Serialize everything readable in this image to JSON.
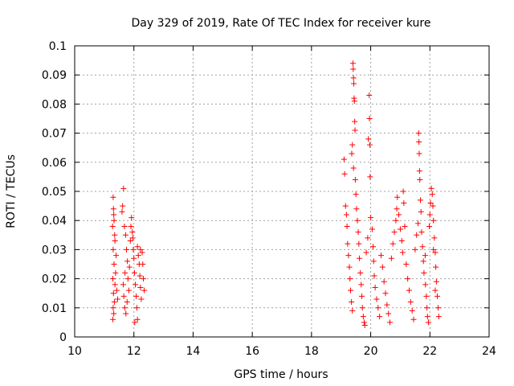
{
  "chart_data": {
    "type": "scatter",
    "title": "Day 329 of 2019, Rate Of TEC Index for receiver kure",
    "xlabel": "GPS time / hours",
    "ylabel": "ROTI / TECUs",
    "xlim": [
      10,
      24
    ],
    "ylim": [
      0,
      0.1
    ],
    "x_ticks": [
      "10",
      "12",
      "14",
      "16",
      "18",
      "20",
      "22",
      "24"
    ],
    "y_ticks": [
      "0",
      "0.01",
      "0.02",
      "0.03",
      "0.04",
      "0.05",
      "0.06",
      "0.07",
      "0.08",
      "0.09",
      "0.1"
    ],
    "grid": true,
    "legend": "none",
    "marker": "plus",
    "marker_color": "#ff0000",
    "series": [
      {
        "points": [
          [
            11.3,
            0.048
          ],
          [
            11.32,
            0.042
          ],
          [
            11.28,
            0.038
          ],
          [
            11.35,
            0.035
          ],
          [
            11.3,
            0.03
          ],
          [
            11.33,
            0.025
          ],
          [
            11.29,
            0.02
          ],
          [
            11.36,
            0.018
          ],
          [
            11.31,
            0.015
          ],
          [
            11.34,
            0.012
          ],
          [
            11.3,
            0.01
          ],
          [
            11.32,
            0.008
          ],
          [
            11.29,
            0.006
          ],
          [
            11.38,
            0.022
          ],
          [
            11.4,
            0.028
          ],
          [
            11.36,
            0.033
          ],
          [
            11.42,
            0.016
          ],
          [
            11.45,
            0.013
          ],
          [
            11.33,
            0.04
          ],
          [
            11.31,
            0.044
          ],
          [
            11.65,
            0.051
          ],
          [
            11.62,
            0.045
          ],
          [
            11.6,
            0.043
          ],
          [
            11.68,
            0.038
          ],
          [
            11.72,
            0.035
          ],
          [
            11.75,
            0.03
          ],
          [
            11.78,
            0.026
          ],
          [
            11.7,
            0.022
          ],
          [
            11.64,
            0.018
          ],
          [
            11.66,
            0.014
          ],
          [
            11.69,
            0.01
          ],
          [
            11.73,
            0.008
          ],
          [
            11.8,
            0.02
          ],
          [
            11.85,
            0.024
          ],
          [
            11.88,
            0.033
          ],
          [
            11.9,
            0.038
          ],
          [
            11.92,
            0.041
          ],
          [
            11.95,
            0.036
          ],
          [
            11.98,
            0.03
          ],
          [
            12.0,
            0.027
          ],
          [
            12.02,
            0.022
          ],
          [
            12.05,
            0.018
          ],
          [
            12.08,
            0.014
          ],
          [
            12.1,
            0.01
          ],
          [
            12.12,
            0.006
          ],
          [
            12.03,
            0.005
          ],
          [
            12.15,
            0.028
          ],
          [
            12.18,
            0.025
          ],
          [
            12.2,
            0.021
          ],
          [
            12.22,
            0.017
          ],
          [
            12.25,
            0.013
          ],
          [
            12.28,
            0.029
          ],
          [
            12.3,
            0.025
          ],
          [
            12.32,
            0.02
          ],
          [
            12.35,
            0.016
          ],
          [
            12.22,
            0.03
          ],
          [
            12.12,
            0.031
          ],
          [
            11.96,
            0.034
          ],
          [
            11.83,
            0.016
          ],
          [
            11.77,
            0.012
          ],
          [
            19.1,
            0.061
          ],
          [
            19.12,
            0.056
          ],
          [
            19.15,
            0.045
          ],
          [
            19.18,
            0.042
          ],
          [
            19.2,
            0.038
          ],
          [
            19.22,
            0.032
          ],
          [
            19.25,
            0.028
          ],
          [
            19.28,
            0.024
          ],
          [
            19.3,
            0.02
          ],
          [
            19.32,
            0.016
          ],
          [
            19.35,
            0.012
          ],
          [
            19.38,
            0.009
          ],
          [
            19.4,
            0.094
          ],
          [
            19.41,
            0.092
          ],
          [
            19.42,
            0.089
          ],
          [
            19.43,
            0.087
          ],
          [
            19.44,
            0.082
          ],
          [
            19.45,
            0.081
          ],
          [
            19.46,
            0.074
          ],
          [
            19.47,
            0.071
          ],
          [
            19.38,
            0.066
          ],
          [
            19.36,
            0.063
          ],
          [
            19.42,
            0.058
          ],
          [
            19.48,
            0.054
          ],
          [
            19.5,
            0.049
          ],
          [
            19.52,
            0.044
          ],
          [
            19.55,
            0.04
          ],
          [
            19.58,
            0.036
          ],
          [
            19.6,
            0.032
          ],
          [
            19.62,
            0.027
          ],
          [
            19.65,
            0.022
          ],
          [
            19.68,
            0.018
          ],
          [
            19.7,
            0.014
          ],
          [
            19.72,
            0.01
          ],
          [
            19.75,
            0.007
          ],
          [
            19.78,
            0.005
          ],
          [
            19.8,
            0.004
          ],
          [
            19.85,
            0.029
          ],
          [
            19.9,
            0.034
          ],
          [
            19.92,
            0.068
          ],
          [
            19.95,
            0.083
          ],
          [
            19.96,
            0.075
          ],
          [
            19.97,
            0.066
          ],
          [
            19.98,
            0.055
          ],
          [
            20.0,
            0.041
          ],
          [
            20.05,
            0.037
          ],
          [
            20.08,
            0.031
          ],
          [
            20.1,
            0.026
          ],
          [
            20.12,
            0.021
          ],
          [
            20.15,
            0.017
          ],
          [
            20.2,
            0.013
          ],
          [
            20.25,
            0.01
          ],
          [
            20.3,
            0.007
          ],
          [
            20.35,
            0.028
          ],
          [
            20.4,
            0.024
          ],
          [
            20.45,
            0.019
          ],
          [
            20.5,
            0.015
          ],
          [
            20.55,
            0.011
          ],
          [
            20.6,
            0.008
          ],
          [
            20.65,
            0.005
          ],
          [
            20.7,
            0.027
          ],
          [
            20.75,
            0.032
          ],
          [
            20.8,
            0.036
          ],
          [
            20.85,
            0.04
          ],
          [
            20.88,
            0.044
          ],
          [
            20.9,
            0.048
          ],
          [
            20.95,
            0.042
          ],
          [
            21.0,
            0.037
          ],
          [
            21.05,
            0.033
          ],
          [
            21.08,
            0.029
          ],
          [
            21.1,
            0.05
          ],
          [
            21.12,
            0.046
          ],
          [
            21.15,
            0.038
          ],
          [
            21.2,
            0.025
          ],
          [
            21.25,
            0.02
          ],
          [
            21.3,
            0.016
          ],
          [
            21.35,
            0.012
          ],
          [
            21.4,
            0.009
          ],
          [
            21.45,
            0.006
          ],
          [
            21.5,
            0.03
          ],
          [
            21.55,
            0.035
          ],
          [
            21.6,
            0.039
          ],
          [
            21.62,
            0.07
          ],
          [
            21.63,
            0.067
          ],
          [
            21.64,
            0.063
          ],
          [
            21.65,
            0.057
          ],
          [
            21.66,
            0.054
          ],
          [
            21.68,
            0.047
          ],
          [
            21.7,
            0.043
          ],
          [
            21.72,
            0.036
          ],
          [
            21.75,
            0.031
          ],
          [
            21.78,
            0.026
          ],
          [
            21.8,
            0.022
          ],
          [
            21.85,
            0.018
          ],
          [
            21.88,
            0.014
          ],
          [
            21.9,
            0.01
          ],
          [
            21.92,
            0.007
          ],
          [
            21.95,
            0.005
          ],
          [
            21.98,
            0.038
          ],
          [
            22.0,
            0.042
          ],
          [
            22.02,
            0.046
          ],
          [
            22.05,
            0.051
          ],
          [
            22.08,
            0.049
          ],
          [
            22.1,
            0.045
          ],
          [
            22.12,
            0.04
          ],
          [
            22.15,
            0.034
          ],
          [
            22.18,
            0.029
          ],
          [
            22.2,
            0.024
          ],
          [
            22.22,
            0.019
          ],
          [
            22.25,
            0.014
          ],
          [
            22.28,
            0.01
          ],
          [
            22.3,
            0.007
          ],
          [
            22.12,
            0.03
          ],
          [
            22.18,
            0.016
          ],
          [
            21.84,
            0.028
          ]
        ]
      }
    ]
  }
}
